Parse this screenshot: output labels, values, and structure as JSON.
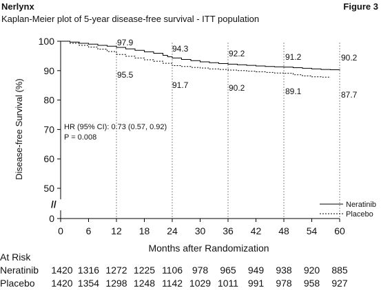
{
  "header": {
    "drug": "Nerlynx",
    "figure_label": "Figure 3",
    "subtitle": "Kaplan-Meier plot of 5-year disease-free survival - ITT population"
  },
  "chart_data": {
    "type": "line",
    "title": "Kaplan-Meier plot of 5-year disease-free survival - ITT population",
    "xlabel": "Months after Randomization",
    "ylabel": "Disease-free Survival (%)",
    "xlim": [
      0,
      60
    ],
    "ylim": [
      50,
      100
    ],
    "x_ticks": [
      0,
      6,
      12,
      18,
      24,
      30,
      36,
      42,
      48,
      54,
      60
    ],
    "y_ticks": [
      100,
      90,
      80,
      70,
      60,
      50
    ],
    "y_break_tick": 0,
    "y_break_marker": "//",
    "grid": false,
    "reference_lines_x": [
      12,
      24,
      36,
      48,
      60
    ],
    "legend_position": "bottom-right",
    "series": [
      {
        "name": "Neratinib",
        "style": "solid",
        "color": "#000000",
        "points": [
          [
            0,
            100
          ],
          [
            2,
            99.7
          ],
          [
            4,
            99.3
          ],
          [
            6,
            99.0
          ],
          [
            8,
            98.6
          ],
          [
            10,
            98.3
          ],
          [
            12,
            97.9
          ],
          [
            14,
            97.4
          ],
          [
            16,
            96.9
          ],
          [
            18,
            96.4
          ],
          [
            20,
            95.9
          ],
          [
            22,
            95.2
          ],
          [
            23,
            94.7
          ],
          [
            24,
            94.3
          ],
          [
            26,
            93.8
          ],
          [
            28,
            93.4
          ],
          [
            30,
            93.0
          ],
          [
            32,
            92.7
          ],
          [
            34,
            92.4
          ],
          [
            36,
            92.2
          ],
          [
            38,
            92.0
          ],
          [
            40,
            91.8
          ],
          [
            42,
            91.6
          ],
          [
            44,
            91.4
          ],
          [
            46,
            91.3
          ],
          [
            48,
            91.2
          ],
          [
            50,
            91.0
          ],
          [
            52,
            90.8
          ],
          [
            54,
            90.6
          ],
          [
            56,
            90.4
          ],
          [
            58,
            90.3
          ],
          [
            60,
            90.2
          ]
        ],
        "labels": [
          {
            "x": 12,
            "text": "97.9"
          },
          {
            "x": 24,
            "text": "94.3"
          },
          {
            "x": 36,
            "text": "92.2"
          },
          {
            "x": 48,
            "text": "91.2"
          },
          {
            "x": 60,
            "text": "90.2"
          }
        ]
      },
      {
        "name": "Placebo",
        "style": "dashed",
        "color": "#000000",
        "points": [
          [
            0,
            100
          ],
          [
            2,
            99.3
          ],
          [
            4,
            98.6
          ],
          [
            6,
            98.0
          ],
          [
            8,
            97.3
          ],
          [
            10,
            96.5
          ],
          [
            12,
            95.5
          ],
          [
            14,
            94.9
          ],
          [
            16,
            94.3
          ],
          [
            18,
            93.7
          ],
          [
            20,
            93.2
          ],
          [
            22,
            92.5
          ],
          [
            24,
            91.7
          ],
          [
            26,
            91.4
          ],
          [
            28,
            91.1
          ],
          [
            30,
            90.9
          ],
          [
            32,
            90.6
          ],
          [
            34,
            90.4
          ],
          [
            36,
            90.2
          ],
          [
            38,
            90.0
          ],
          [
            40,
            89.8
          ],
          [
            42,
            89.6
          ],
          [
            44,
            89.4
          ],
          [
            46,
            89.2
          ],
          [
            48,
            89.1
          ],
          [
            50,
            88.6
          ],
          [
            52,
            88.2
          ],
          [
            54,
            87.9
          ],
          [
            56,
            87.8
          ],
          [
            58,
            87.7
          ]
        ],
        "labels": [
          {
            "x": 12,
            "text": "95.5"
          },
          {
            "x": 24,
            "text": "91.7"
          },
          {
            "x": 36,
            "text": "90.2"
          },
          {
            "x": 48,
            "text": "89.1"
          },
          {
            "x": 60,
            "text": "87.7"
          }
        ]
      }
    ],
    "annotations": [
      "HR (95% CI): 0.73 (0.57, 0.92)",
      "P = 0.008"
    ],
    "at_risk": {
      "title": "At Risk",
      "rows": [
        {
          "name": "Neratinib",
          "values": [
            "1420",
            "1316",
            "1272",
            "1225",
            "1106",
            "978",
            "965",
            "949",
            "938",
            "920",
            "885"
          ]
        },
        {
          "name": "Placebo",
          "values": [
            "1420",
            "1354",
            "1298",
            "1248",
            "1142",
            "1029",
            "1011",
            "991",
            "978",
            "958",
            "927"
          ]
        }
      ]
    }
  }
}
